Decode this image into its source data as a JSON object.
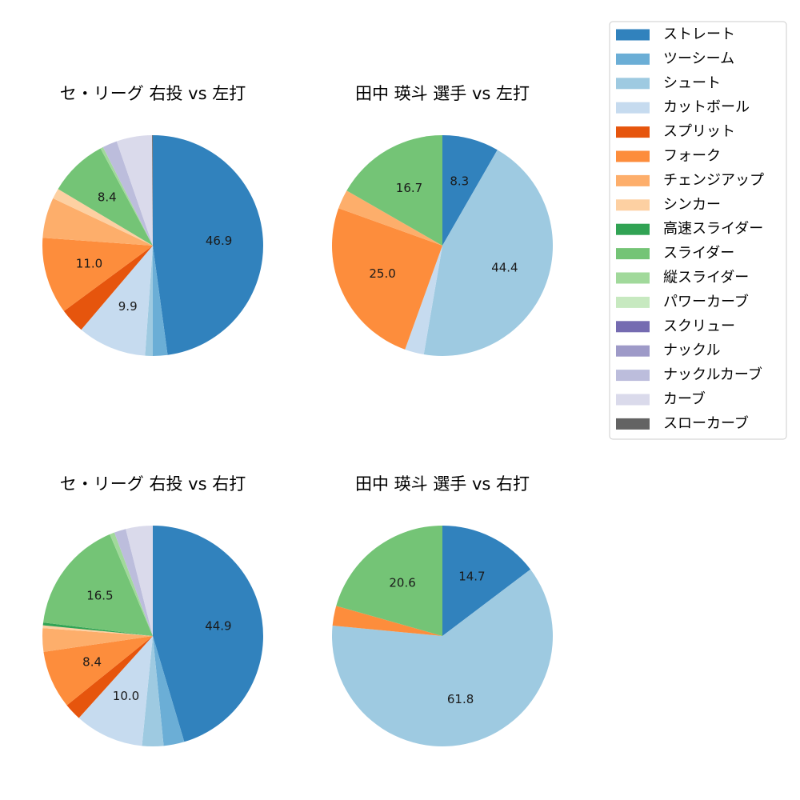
{
  "legend": {
    "items": [
      {
        "label": "ストレート",
        "color": "#3182bd"
      },
      {
        "label": "ツーシーム",
        "color": "#6baed6"
      },
      {
        "label": "シュート",
        "color": "#9ecae1"
      },
      {
        "label": "カットボール",
        "color": "#c6dbef"
      },
      {
        "label": "スプリット",
        "color": "#e6550d"
      },
      {
        "label": "フォーク",
        "color": "#fd8d3c"
      },
      {
        "label": "チェンジアップ",
        "color": "#fdae6b"
      },
      {
        "label": "シンカー",
        "color": "#fdd0a2"
      },
      {
        "label": "高速スライダー",
        "color": "#31a354"
      },
      {
        "label": "スライダー",
        "color": "#74c476"
      },
      {
        "label": "縦スライダー",
        "color": "#a1d99b"
      },
      {
        "label": "パワーカーブ",
        "color": "#c7e9c0"
      },
      {
        "label": "スクリュー",
        "color": "#756bb1"
      },
      {
        "label": "ナックル",
        "color": "#9e9ac8"
      },
      {
        "label": "ナックルカーブ",
        "color": "#bcbddc"
      },
      {
        "label": "カーブ",
        "color": "#dadaeb"
      },
      {
        "label": "スローカーブ",
        "color": "#636363"
      }
    ]
  },
  "chart_data": [
    {
      "type": "pie",
      "title": "セ・リーグ 右投 vs 左打",
      "slices": [
        {
          "label": "ストレート",
          "value": 46.9,
          "display": "46.9"
        },
        {
          "label": "ツーシーム",
          "value": 2.1,
          "display": ""
        },
        {
          "label": "シュート",
          "value": 1.1,
          "display": ""
        },
        {
          "label": "カットボール",
          "value": 9.9,
          "display": "9.9"
        },
        {
          "label": "スプリット",
          "value": 3.6,
          "display": ""
        },
        {
          "label": "フォーク",
          "value": 11.0,
          "display": "11.0"
        },
        {
          "label": "チェンジアップ",
          "value": 5.8,
          "display": ""
        },
        {
          "label": "シンカー",
          "value": 1.5,
          "display": ""
        },
        {
          "label": "スライダー",
          "value": 8.4,
          "display": "8.4"
        },
        {
          "label": "縦スライダー",
          "value": 0.4,
          "display": ""
        },
        {
          "label": "ナックルカーブ",
          "value": 2.1,
          "display": ""
        },
        {
          "label": "カーブ",
          "value": 5.1,
          "display": ""
        },
        {
          "label": "スローカーブ",
          "value": 0.1,
          "display": ""
        }
      ]
    },
    {
      "type": "pie",
      "title": "田中 瑛斗 選手 vs 左打",
      "slices": [
        {
          "label": "ストレート",
          "value": 8.3,
          "display": "8.3"
        },
        {
          "label": "シュート",
          "value": 44.4,
          "display": "44.4"
        },
        {
          "label": "カットボール",
          "value": 2.8,
          "display": ""
        },
        {
          "label": "フォーク",
          "value": 25.0,
          "display": "25.0"
        },
        {
          "label": "チェンジアップ",
          "value": 2.8,
          "display": ""
        },
        {
          "label": "スライダー",
          "value": 16.7,
          "display": "16.7"
        }
      ]
    },
    {
      "type": "pie",
      "title": "セ・リーグ 右投 vs 右打",
      "slices": [
        {
          "label": "ストレート",
          "value": 44.9,
          "display": "44.9"
        },
        {
          "label": "ツーシーム",
          "value": 3.0,
          "display": ""
        },
        {
          "label": "シュート",
          "value": 3.1,
          "display": ""
        },
        {
          "label": "カットボール",
          "value": 10.0,
          "display": "10.0"
        },
        {
          "label": "スプリット",
          "value": 2.5,
          "display": ""
        },
        {
          "label": "フォーク",
          "value": 8.4,
          "display": "8.4"
        },
        {
          "label": "チェンジアップ",
          "value": 3.4,
          "display": ""
        },
        {
          "label": "シンカー",
          "value": 0.4,
          "display": ""
        },
        {
          "label": "高速スライダー",
          "value": 0.4,
          "display": ""
        },
        {
          "label": "スライダー",
          "value": 16.5,
          "display": "16.5"
        },
        {
          "label": "縦スライダー",
          "value": 0.7,
          "display": ""
        },
        {
          "label": "ナックルカーブ",
          "value": 1.7,
          "display": ""
        },
        {
          "label": "カーブ",
          "value": 3.9,
          "display": ""
        }
      ]
    },
    {
      "type": "pie",
      "title": "田中 瑛斗 選手 vs 右打",
      "slices": [
        {
          "label": "ストレート",
          "value": 14.7,
          "display": "14.7"
        },
        {
          "label": "シュート",
          "value": 61.8,
          "display": "61.8"
        },
        {
          "label": "フォーク",
          "value": 2.9,
          "display": ""
        },
        {
          "label": "スライダー",
          "value": 20.6,
          "display": "20.6"
        }
      ]
    }
  ]
}
